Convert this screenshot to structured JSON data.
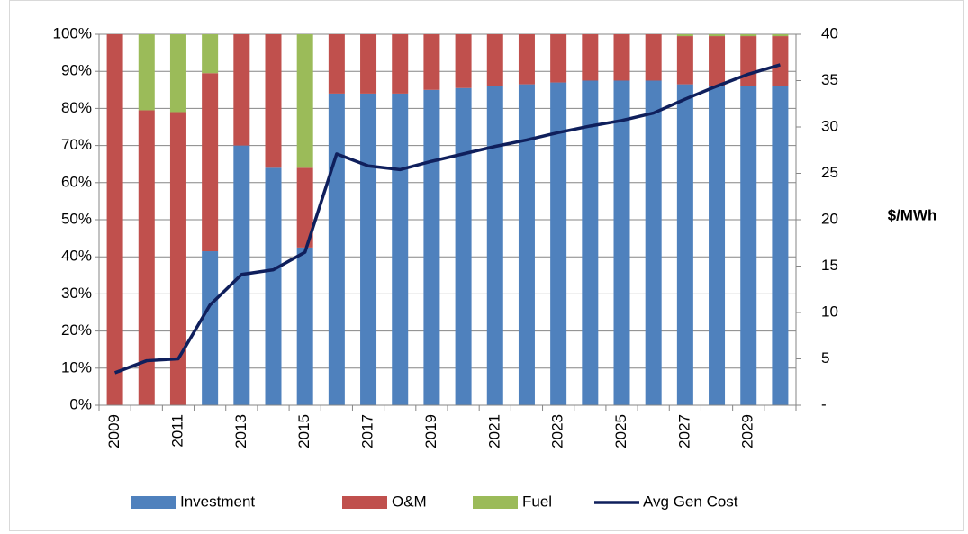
{
  "chart_data": {
    "type": "stacked_bar_line",
    "categories": [
      "2009",
      null,
      "2011",
      null,
      "2013",
      null,
      "2015",
      null,
      "2017",
      null,
      "2019",
      null,
      "2021",
      null,
      "2023",
      null,
      "2025",
      null,
      "2027",
      null,
      "2029",
      null
    ],
    "series": [
      {
        "name": "Investment",
        "color": "#4f81bd",
        "values": [
          0,
          0,
          0,
          41.5,
          70,
          64,
          42.5,
          84,
          84,
          84,
          85,
          85.5,
          86,
          86.5,
          87,
          87.5,
          87.5,
          87.5,
          86.5,
          86,
          86,
          86
        ]
      },
      {
        "name": "O&M",
        "color": "#c0504d",
        "values": [
          100,
          79.5,
          79,
          48,
          30,
          36,
          21.5,
          16,
          16,
          16,
          15,
          14.5,
          14,
          13.5,
          13,
          12.5,
          12.5,
          12.5,
          13,
          13.5,
          13.5,
          13.5
        ]
      },
      {
        "name": "Fuel",
        "color": "#9bbb59",
        "values": [
          0,
          20.5,
          21,
          10.5,
          0,
          0,
          36,
          0,
          0,
          0,
          0,
          0,
          0,
          0,
          0,
          0,
          0,
          0,
          0.5,
          0.5,
          0.5,
          0.5
        ]
      },
      {
        "name": "Avg Gen Cost",
        "color": "#0f1f5c",
        "axis": "y2",
        "values": [
          3.5,
          4.8,
          5.0,
          10.8,
          14.1,
          14.6,
          16.5,
          27.1,
          25.8,
          25.4,
          26.3,
          27.1,
          27.9,
          28.6,
          29.4,
          30.1,
          30.7,
          31.5,
          33.0,
          34.4,
          35.7,
          36.7
        ]
      }
    ],
    "ylim": [
      0,
      100
    ],
    "yticks": [
      {
        "value": 0,
        "label": "0%"
      },
      {
        "value": 10,
        "label": "10%"
      },
      {
        "value": 20,
        "label": "20%"
      },
      {
        "value": 30,
        "label": "30%"
      },
      {
        "value": 40,
        "label": "40%"
      },
      {
        "value": 50,
        "label": "50%"
      },
      {
        "value": 60,
        "label": "60%"
      },
      {
        "value": 70,
        "label": "70%"
      },
      {
        "value": 80,
        "label": "80%"
      },
      {
        "value": 90,
        "label": "90%"
      },
      {
        "value": 100,
        "label": "100%"
      }
    ],
    "y2lim": [
      0,
      40
    ],
    "y2ticks": [
      {
        "value": 0,
        "label": "-"
      },
      5,
      10,
      15,
      20,
      25,
      30,
      35,
      40
    ],
    "y2label": "$/MWh",
    "grid": true,
    "legend": "bottom"
  }
}
